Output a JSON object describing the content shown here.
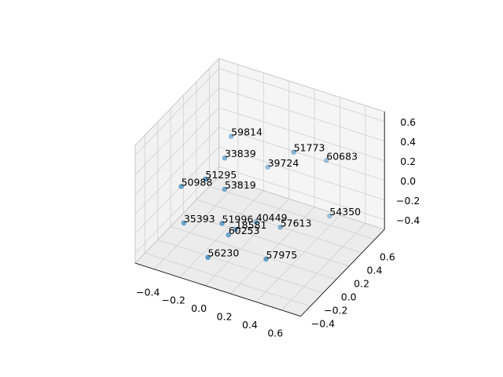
{
  "chart_data": {
    "type": "scatter3d",
    "color": "#1f77b4",
    "x": [
      -0.14,
      -0.11,
      0.27,
      0.4,
      0.03,
      -0.16,
      -0.32,
      -0.1,
      -0.32,
      -0.06,
      0.05,
      -0.03,
      0.17,
      0.4,
      -0.04,
      -0.09,
      0.24
    ],
    "y": [
      0.13,
      -0.03,
      0.29,
      0.54,
      0.36,
      -0.23,
      -0.29,
      -0.05,
      -0.25,
      -0.17,
      0.14,
      -0.02,
      0.28,
      0.59,
      -0.11,
      -0.33,
      -0.08
    ],
    "z": [
      0.5,
      0.4,
      0.4,
      0.2,
      0.1,
      0.3,
      0.2,
      0.1,
      -0.2,
      -0.15,
      -0.3,
      -0.3,
      -0.4,
      -0.4,
      -0.3,
      -0.4,
      -0.45
    ],
    "labels": [
      59814,
      33839,
      51773,
      60683,
      39724,
      51295,
      50988,
      53819,
      35393,
      51996,
      40449,
      18581,
      57613,
      54350,
      60253,
      56230,
      57975
    ],
    "xlim": [
      -0.55,
      0.75
    ],
    "ylim": [
      -0.55,
      0.75
    ],
    "zlim": [
      -0.5,
      0.7
    ],
    "xticks": [
      {
        "value": -0.4,
        "label": "−0.4"
      },
      {
        "value": -0.2,
        "label": "−0.2"
      },
      {
        "value": 0,
        "label": "0.0"
      },
      0.2,
      0.4,
      0.6
    ],
    "yticks": [
      {
        "value": -0.4,
        "label": "−0.4"
      },
      {
        "value": -0.2,
        "label": "−0.2"
      },
      {
        "value": 0,
        "label": "0.0"
      },
      0.2,
      0.4,
      0.6
    ],
    "zticks": [
      {
        "value": -0.4,
        "label": "−0.4"
      },
      {
        "value": -0.2,
        "label": "−0.2"
      },
      {
        "value": 0,
        "label": "0.0"
      },
      0.2,
      0.4,
      0.6
    ],
    "grid": true
  }
}
